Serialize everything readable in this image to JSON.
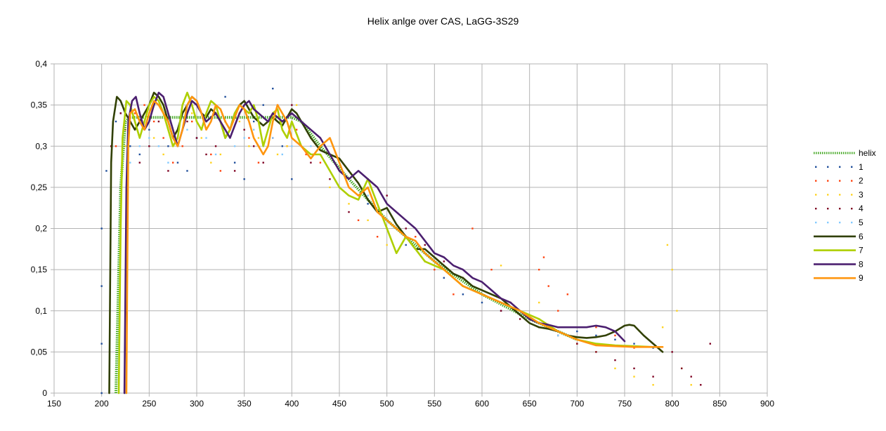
{
  "chart_data": {
    "type": "line",
    "title": "Helix anlge over CAS, LaGG-3S29",
    "xlabel": "",
    "ylabel": "",
    "xlim": [
      150,
      900
    ],
    "ylim": [
      0,
      0.4
    ],
    "xticks": [
      150,
      200,
      250,
      300,
      350,
      400,
      450,
      500,
      550,
      600,
      650,
      700,
      750,
      800,
      850,
      900
    ],
    "yticks": [
      0,
      0.05,
      0.1,
      0.15,
      0.2,
      0.25,
      0.3,
      0.35,
      0.4
    ],
    "xtick_labels": [
      "150",
      "200",
      "250",
      "300",
      "350",
      "400",
      "450",
      "500",
      "550",
      "600",
      "650",
      "700",
      "750",
      "800",
      "850",
      "900"
    ],
    "ytick_labels": [
      "0",
      "0,05",
      "0,1",
      "0,15",
      "0,2",
      "0,25",
      "0,3",
      "0,35",
      "0,4"
    ],
    "grid": true,
    "legend": "right",
    "series": [
      {
        "name": "helix",
        "style": "dotted-line",
        "color": "#3fa51e",
        "x": [
          215,
          220,
          225,
          230,
          240,
          260,
          300,
          340,
          380,
          400,
          410,
          430,
          460,
          500,
          550,
          600,
          650,
          700
        ],
        "y": [
          0.0,
          0.25,
          0.33,
          0.335,
          0.335,
          0.335,
          0.335,
          0.335,
          0.335,
          0.335,
          0.33,
          0.3,
          0.26,
          0.21,
          0.16,
          0.12,
          0.09,
          0.065
        ]
      },
      {
        "name": "1",
        "style": "markers",
        "color": "#1f4e9b",
        "x": [
          200,
          200,
          200,
          200,
          205,
          210,
          215,
          220,
          230,
          240,
          250,
          260,
          270,
          280,
          290,
          300,
          310,
          320,
          330,
          340,
          350,
          360,
          370,
          380,
          390,
          400,
          410,
          420,
          430,
          440,
          460,
          480,
          500,
          520,
          540,
          560,
          580,
          600,
          620,
          640,
          660,
          680,
          700,
          720,
          740,
          760,
          780
        ],
        "y": [
          0.0,
          0.06,
          0.13,
          0.2,
          0.27,
          0.3,
          0.33,
          0.34,
          0.3,
          0.29,
          0.32,
          0.35,
          0.3,
          0.28,
          0.27,
          0.31,
          0.33,
          0.34,
          0.36,
          0.28,
          0.26,
          0.33,
          0.35,
          0.37,
          0.3,
          0.26,
          0.33,
          0.31,
          0.3,
          0.29,
          0.27,
          0.23,
          0.2,
          0.18,
          0.16,
          0.14,
          0.12,
          0.11,
          0.1,
          0.095,
          0.085,
          0.08,
          0.075,
          0.07,
          0.065,
          0.06,
          0.055
        ]
      },
      {
        "name": "2",
        "style": "markers",
        "color": "#ff420e",
        "x": [
          215,
          225,
          235,
          245,
          255,
          265,
          275,
          285,
          295,
          305,
          315,
          325,
          335,
          345,
          355,
          365,
          375,
          385,
          395,
          405,
          415,
          430,
          450,
          470,
          490,
          510,
          530,
          550,
          570,
          590,
          610,
          630,
          650,
          660,
          665,
          670,
          680,
          690,
          700,
          720,
          740,
          760
        ],
        "y": [
          0.3,
          0.32,
          0.34,
          0.35,
          0.33,
          0.31,
          0.28,
          0.3,
          0.33,
          0.32,
          0.29,
          0.27,
          0.32,
          0.34,
          0.31,
          0.28,
          0.33,
          0.35,
          0.3,
          0.32,
          0.29,
          0.28,
          0.25,
          0.21,
          0.19,
          0.2,
          0.19,
          0.15,
          0.12,
          0.2,
          0.15,
          0.11,
          0.09,
          0.15,
          0.165,
          0.13,
          0.1,
          0.12,
          0.06,
          0.08,
          0.07,
          0.055
        ]
      },
      {
        "name": "3",
        "style": "markers",
        "color": "#ffd320",
        "x": [
          225,
          235,
          245,
          255,
          265,
          275,
          285,
          295,
          305,
          315,
          325,
          335,
          345,
          355,
          365,
          375,
          385,
          395,
          405,
          420,
          440,
          460,
          480,
          500,
          520,
          540,
          560,
          580,
          600,
          620,
          640,
          660,
          680,
          700,
          720,
          740,
          760,
          780,
          790,
          795,
          800,
          805,
          810,
          820
        ],
        "y": [
          0.3,
          0.32,
          0.33,
          0.31,
          0.29,
          0.3,
          0.32,
          0.34,
          0.31,
          0.28,
          0.29,
          0.32,
          0.33,
          0.3,
          0.31,
          0.33,
          0.29,
          0.3,
          0.35,
          0.31,
          0.25,
          0.23,
          0.21,
          0.18,
          0.19,
          0.16,
          0.15,
          0.13,
          0.12,
          0.155,
          0.1,
          0.11,
          0.07,
          0.06,
          0.05,
          0.03,
          0.02,
          0.01,
          0.08,
          0.18,
          0.15,
          0.1,
          0.03,
          0.01
        ]
      },
      {
        "name": "4",
        "style": "markers",
        "color": "#7e0021",
        "x": [
          210,
          220,
          230,
          240,
          250,
          260,
          270,
          280,
          290,
          300,
          310,
          320,
          330,
          340,
          350,
          360,
          370,
          380,
          390,
          400,
          410,
          420,
          440,
          460,
          480,
          500,
          520,
          540,
          560,
          580,
          600,
          620,
          640,
          660,
          680,
          700,
          720,
          740,
          760,
          780,
          800,
          810,
          820,
          830,
          840
        ],
        "y": [
          0.3,
          0.34,
          0.33,
          0.28,
          0.3,
          0.33,
          0.27,
          0.3,
          0.33,
          0.31,
          0.29,
          0.3,
          0.33,
          0.27,
          0.32,
          0.3,
          0.28,
          0.31,
          0.33,
          0.35,
          0.3,
          0.28,
          0.26,
          0.22,
          0.26,
          0.24,
          0.2,
          0.18,
          0.16,
          0.14,
          0.12,
          0.1,
          0.09,
          0.08,
          0.07,
          0.06,
          0.05,
          0.04,
          0.03,
          0.02,
          0.05,
          0.03,
          0.02,
          0.01,
          0.06
        ]
      },
      {
        "name": "5",
        "style": "markers",
        "color": "#83caff",
        "x": [
          225,
          225,
          230,
          240,
          250,
          260,
          270,
          280,
          290,
          300,
          310,
          320,
          330,
          340,
          350,
          360,
          370,
          380,
          390,
          400,
          420,
          440,
          460,
          480,
          500,
          520,
          540,
          560,
          580,
          600,
          620,
          640,
          660,
          680
        ],
        "y": [
          0.0,
          0.15,
          0.28,
          0.3,
          0.31,
          0.3,
          0.28,
          0.3,
          0.32,
          0.33,
          0.31,
          0.29,
          0.32,
          0.3,
          0.31,
          0.32,
          0.3,
          0.31,
          0.29,
          0.3,
          0.3,
          0.29,
          0.27,
          0.24,
          0.21,
          0.19,
          0.17,
          0.15,
          0.13,
          0.12,
          0.11,
          0.1,
          0.09,
          0.07
        ]
      },
      {
        "name": "6",
        "style": "line",
        "color": "#314004",
        "x": [
          208,
          210,
          212,
          216,
          220,
          225,
          230,
          235,
          240,
          245,
          250,
          255,
          260,
          265,
          270,
          275,
          280,
          285,
          290,
          295,
          300,
          305,
          310,
          315,
          320,
          325,
          330,
          335,
          340,
          345,
          350,
          355,
          360,
          365,
          370,
          375,
          380,
          385,
          390,
          395,
          400,
          405,
          410,
          420,
          430,
          440,
          450,
          460,
          470,
          480,
          490,
          500,
          510,
          520,
          530,
          540,
          550,
          560,
          570,
          580,
          590,
          600,
          610,
          620,
          630,
          640,
          650,
          660,
          670,
          680,
          690,
          700,
          710,
          720,
          730,
          740,
          750,
          755,
          760,
          770,
          780,
          790
        ],
        "y": [
          0.0,
          0.28,
          0.33,
          0.36,
          0.355,
          0.34,
          0.33,
          0.32,
          0.33,
          0.34,
          0.35,
          0.365,
          0.36,
          0.35,
          0.33,
          0.31,
          0.32,
          0.34,
          0.35,
          0.36,
          0.355,
          0.34,
          0.335,
          0.345,
          0.34,
          0.33,
          0.31,
          0.32,
          0.34,
          0.35,
          0.355,
          0.345,
          0.335,
          0.33,
          0.325,
          0.33,
          0.335,
          0.33,
          0.325,
          0.335,
          0.345,
          0.34,
          0.33,
          0.31,
          0.295,
          0.29,
          0.285,
          0.27,
          0.255,
          0.235,
          0.22,
          0.225,
          0.205,
          0.19,
          0.175,
          0.175,
          0.165,
          0.155,
          0.145,
          0.14,
          0.13,
          0.125,
          0.12,
          0.115,
          0.105,
          0.095,
          0.085,
          0.08,
          0.078,
          0.075,
          0.07,
          0.068,
          0.067,
          0.068,
          0.07,
          0.075,
          0.082,
          0.083,
          0.082,
          0.07,
          0.06,
          0.05
        ]
      },
      {
        "name": "7",
        "style": "line",
        "color": "#aecf00",
        "x": [
          218,
          220,
          222,
          226,
          230,
          235,
          240,
          245,
          250,
          255,
          260,
          265,
          270,
          275,
          280,
          285,
          290,
          295,
          300,
          305,
          310,
          315,
          320,
          325,
          330,
          335,
          340,
          345,
          350,
          355,
          360,
          365,
          370,
          375,
          380,
          385,
          390,
          395,
          400,
          410,
          420,
          430,
          440,
          450,
          460,
          470,
          480,
          490,
          500,
          510,
          520,
          530,
          540,
          550,
          560,
          570,
          580,
          590,
          600,
          620,
          640,
          660,
          680,
          700,
          720,
          740,
          760,
          780
        ],
        "y": [
          0.0,
          0.2,
          0.31,
          0.355,
          0.35,
          0.33,
          0.31,
          0.33,
          0.35,
          0.36,
          0.355,
          0.34,
          0.32,
          0.3,
          0.31,
          0.35,
          0.365,
          0.35,
          0.33,
          0.32,
          0.34,
          0.355,
          0.35,
          0.33,
          0.31,
          0.32,
          0.34,
          0.35,
          0.345,
          0.34,
          0.35,
          0.33,
          0.3,
          0.32,
          0.34,
          0.345,
          0.32,
          0.31,
          0.33,
          0.3,
          0.29,
          0.29,
          0.27,
          0.25,
          0.24,
          0.235,
          0.26,
          0.23,
          0.2,
          0.17,
          0.19,
          0.175,
          0.16,
          0.155,
          0.15,
          0.14,
          0.13,
          0.125,
          0.12,
          0.11,
          0.1,
          0.09,
          0.075,
          0.065,
          0.06,
          0.058,
          0.057,
          0.056
        ]
      },
      {
        "name": "8",
        "style": "line",
        "color": "#4b1f6f",
        "x": [
          224,
          226,
          228,
          232,
          236,
          240,
          245,
          250,
          255,
          260,
          265,
          270,
          275,
          280,
          285,
          290,
          295,
          300,
          305,
          310,
          315,
          320,
          325,
          330,
          335,
          340,
          345,
          350,
          355,
          360,
          365,
          370,
          375,
          380,
          385,
          390,
          395,
          400,
          410,
          420,
          430,
          440,
          450,
          460,
          470,
          480,
          490,
          500,
          510,
          520,
          530,
          540,
          550,
          560,
          570,
          580,
          590,
          600,
          610,
          620,
          630,
          640,
          650,
          660,
          670,
          680,
          690,
          700,
          710,
          720,
          730,
          740,
          750
        ],
        "y": [
          0.0,
          0.25,
          0.33,
          0.355,
          0.36,
          0.34,
          0.32,
          0.33,
          0.35,
          0.365,
          0.36,
          0.34,
          0.32,
          0.3,
          0.32,
          0.34,
          0.355,
          0.35,
          0.34,
          0.33,
          0.335,
          0.34,
          0.33,
          0.32,
          0.31,
          0.325,
          0.34,
          0.35,
          0.355,
          0.345,
          0.34,
          0.335,
          0.33,
          0.34,
          0.335,
          0.33,
          0.335,
          0.34,
          0.33,
          0.32,
          0.31,
          0.29,
          0.27,
          0.26,
          0.27,
          0.26,
          0.25,
          0.23,
          0.22,
          0.21,
          0.2,
          0.185,
          0.17,
          0.165,
          0.155,
          0.15,
          0.14,
          0.135,
          0.125,
          0.115,
          0.11,
          0.1,
          0.09,
          0.085,
          0.083,
          0.08,
          0.08,
          0.08,
          0.08,
          0.082,
          0.08,
          0.075,
          0.063
        ]
      },
      {
        "name": "9",
        "style": "line",
        "color": "#ff950e",
        "x": [
          226,
          227,
          228,
          230,
          235,
          240,
          245,
          250,
          255,
          260,
          265,
          270,
          275,
          280,
          285,
          290,
          295,
          300,
          305,
          310,
          315,
          320,
          325,
          330,
          335,
          340,
          345,
          350,
          355,
          360,
          365,
          370,
          375,
          380,
          385,
          390,
          395,
          400,
          410,
          420,
          430,
          440,
          450,
          460,
          470,
          480,
          490,
          500,
          510,
          520,
          530,
          540,
          550,
          560,
          570,
          580,
          590,
          600,
          620,
          640,
          660,
          680,
          700,
          720,
          740,
          760,
          780,
          790
        ],
        "y": [
          0.0,
          0.15,
          0.3,
          0.34,
          0.345,
          0.33,
          0.32,
          0.34,
          0.355,
          0.35,
          0.34,
          0.33,
          0.31,
          0.3,
          0.32,
          0.35,
          0.36,
          0.355,
          0.34,
          0.32,
          0.33,
          0.35,
          0.345,
          0.33,
          0.32,
          0.335,
          0.35,
          0.345,
          0.33,
          0.31,
          0.3,
          0.29,
          0.3,
          0.33,
          0.35,
          0.34,
          0.33,
          0.31,
          0.3,
          0.285,
          0.3,
          0.31,
          0.28,
          0.25,
          0.24,
          0.25,
          0.22,
          0.21,
          0.2,
          0.19,
          0.185,
          0.17,
          0.16,
          0.15,
          0.14,
          0.13,
          0.125,
          0.12,
          0.11,
          0.1,
          0.085,
          0.075,
          0.065,
          0.058,
          0.057,
          0.056,
          0.056,
          0.056
        ]
      }
    ]
  }
}
